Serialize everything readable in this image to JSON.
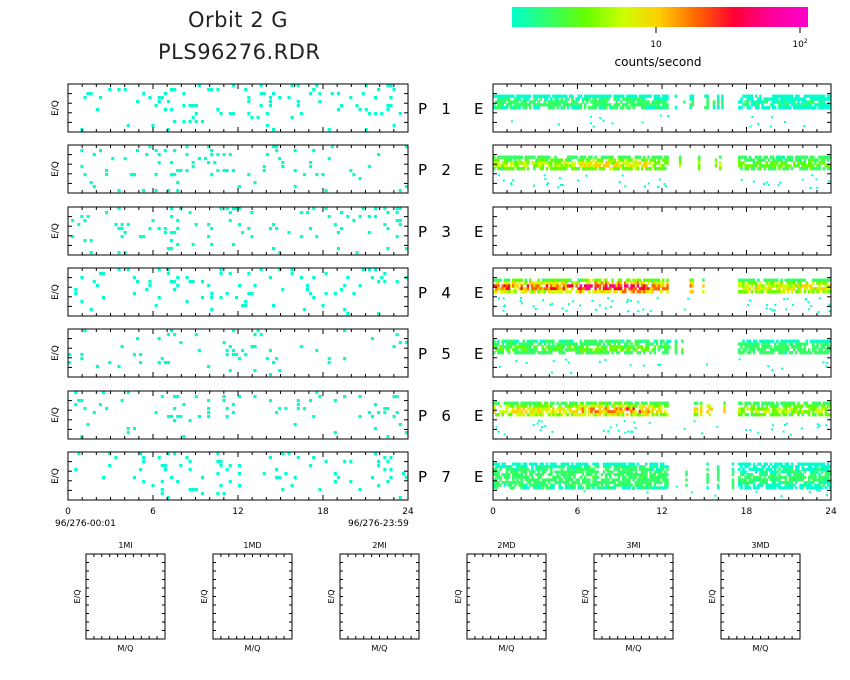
{
  "header": {
    "title_line1": "Orbit 2 G",
    "title_line2": "PLS96276.RDR"
  },
  "colorbar": {
    "label": "counts/second",
    "tick1": "10",
    "tick2_base": "10",
    "tick2_exp": "2",
    "gradient_stops": [
      "#00ffcc",
      "#33ff66",
      "#66ff00",
      "#ccff00",
      "#ffcc00",
      "#ff6600",
      "#ff0033",
      "#ff0099",
      "#ff00cc"
    ]
  },
  "chart_data": [
    {
      "type": "heatmap",
      "name": "left-panels",
      "panels": [
        "P 1",
        "P 2",
        "P 3",
        "P 4",
        "P 5",
        "P 6",
        "P 7"
      ],
      "ylabel": "E/Q",
      "xlim": [
        0,
        24
      ],
      "xticks": [
        "0",
        "6",
        "12",
        "18",
        "24"
      ],
      "time_start": "96/276-00:01",
      "time_end": "96/276-23:59",
      "density": [
        0.07,
        0.06,
        0.07,
        0.05,
        0.04,
        0.05,
        0.045
      ]
    },
    {
      "type": "heatmap",
      "name": "right-panels",
      "panels": [
        "E",
        "E",
        "E",
        "E",
        "E",
        "E",
        "E"
      ],
      "xlim": [
        0,
        24
      ],
      "xticks": [
        "0",
        "6",
        "12",
        "18",
        "24"
      ],
      "band_rate_level": [
        0.12,
        0.45,
        0.0,
        0.8,
        0.25,
        0.6,
        0.15
      ],
      "gap_hours": [
        [
          12.4,
          17.4
        ]
      ]
    },
    {
      "type": "heatmap",
      "name": "mass-panels",
      "panels": [
        "1MI",
        "1MD",
        "2MI",
        "2MD",
        "3MI",
        "3MD"
      ],
      "xlabel": "M/Q",
      "ylabel": "E/Q"
    }
  ]
}
